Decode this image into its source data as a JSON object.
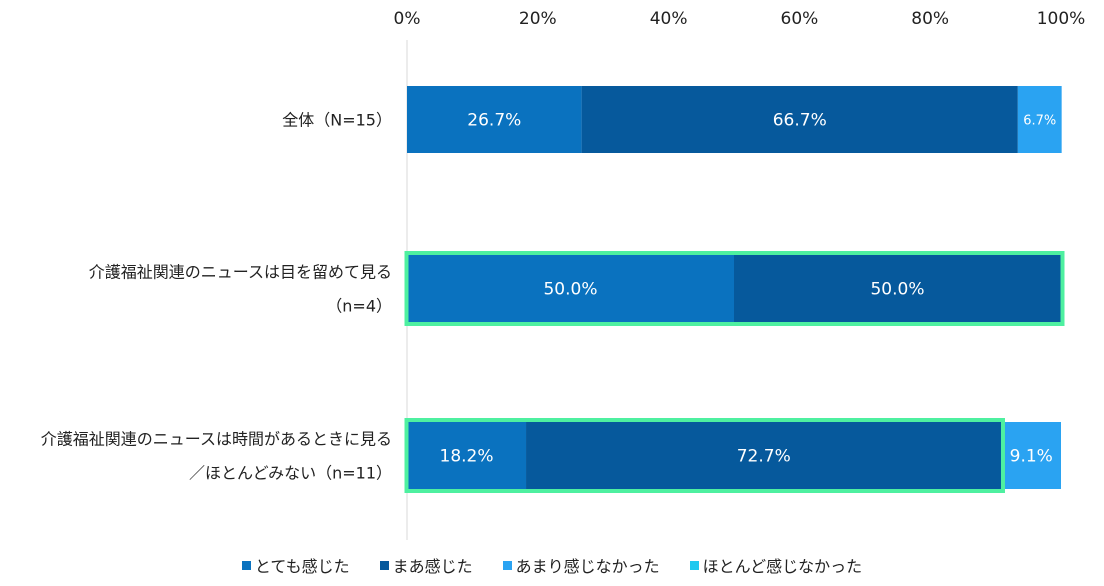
{
  "chart_data": {
    "type": "bar",
    "orientation": "horizontal",
    "stacked": true,
    "percent_axis": true,
    "xlim": [
      0,
      100
    ],
    "tick_labels": [
      "0%",
      "20%",
      "40%",
      "60%",
      "80%",
      "100%"
    ],
    "categories": [
      {
        "lines": [
          "全体（N=15）"
        ]
      },
      {
        "lines": [
          "介護福祉関連のニュースは目を留めて見る",
          "（n=4）"
        ]
      },
      {
        "lines": [
          "介護福祉関連のニュースは時間があるときに見る",
          "／ほとんどみない（n=11）"
        ]
      }
    ],
    "series": [
      {
        "name": "とても感じた",
        "color": "#0a72bf",
        "values": [
          26.7,
          50.0,
          18.2
        ],
        "labels": [
          "26.7%",
          "50.0%",
          "18.2%"
        ]
      },
      {
        "name": "まあ感じた",
        "color": "#06599c",
        "values": [
          66.7,
          50.0,
          72.7
        ],
        "labels": [
          "66.7%",
          "50.0%",
          "72.7%"
        ]
      },
      {
        "name": "あまり感じなかった",
        "color": "#2aa3f2",
        "values": [
          6.7,
          0,
          9.1
        ],
        "labels": [
          "6.7%",
          "",
          "9.1%"
        ]
      },
      {
        "name": "ほとんど感じなかった",
        "color": "#1ec8ef",
        "values": [
          0,
          0,
          0
        ],
        "labels": [
          "",
          "",
          ""
        ]
      }
    ],
    "highlights": [
      {
        "category_index": 1,
        "series_from": 0,
        "series_to": 1,
        "color": "#4ef0a0"
      },
      {
        "category_index": 2,
        "series_from": 0,
        "series_to": 1,
        "color": "#4ef0a0"
      }
    ],
    "legend_position": "bottom",
    "grid": false
  }
}
